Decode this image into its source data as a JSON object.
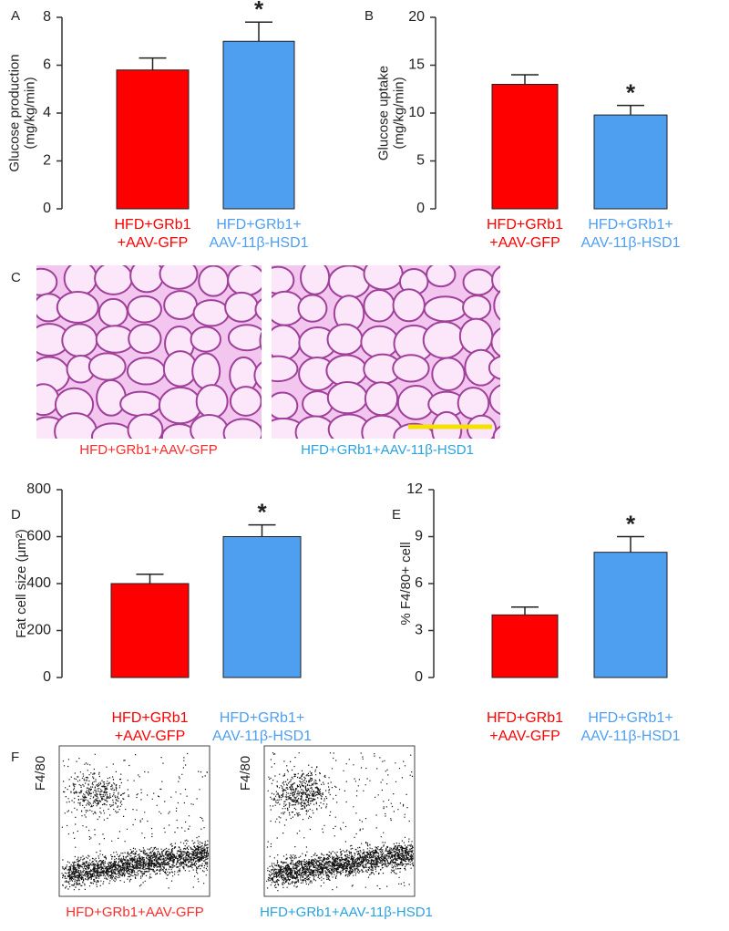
{
  "chart_data": [
    {
      "type": "bar",
      "panel": "A",
      "ylabel": [
        "Glucose production",
        "(mg/kg/min)"
      ],
      "categories": [
        [
          "HFD+GRb1",
          "+AAV-GFP"
        ],
        [
          "HFD+GRb1+",
          "AAV-11β-HSD1"
        ]
      ],
      "values": [
        5.8,
        7.0
      ],
      "errors": [
        0.5,
        0.8
      ],
      "annotations": [
        null,
        "*"
      ],
      "colors": [
        "#ff0000",
        "#4f9ff0"
      ],
      "ylim": [
        0,
        8
      ],
      "yticks": [
        0,
        2,
        4,
        6,
        8
      ]
    },
    {
      "type": "bar",
      "panel": "B",
      "ylabel": [
        "Glucose uptake",
        "(mg/kg/min)"
      ],
      "categories": [
        [
          "HFD+GRb1",
          "+AAV-GFP"
        ],
        [
          "HFD+GRb1+",
          "AAV-11β-HSD1"
        ]
      ],
      "values": [
        13,
        9.8
      ],
      "errors": [
        1,
        1
      ],
      "annotations": [
        null,
        "*"
      ],
      "colors": [
        "#ff0000",
        "#4f9ff0"
      ],
      "ylim": [
        0,
        20
      ],
      "yticks": [
        0,
        5,
        10,
        15,
        20
      ]
    },
    {
      "type": "bar",
      "panel": "D",
      "ylabel": [
        "Fat cell size (μm²)"
      ],
      "categories": [
        [
          "HFD+GRb1",
          "+AAV-GFP"
        ],
        [
          "HFD+GRb1+",
          "AAV-11β-HSD1"
        ]
      ],
      "values": [
        400,
        600
      ],
      "errors": [
        40,
        50
      ],
      "annotations": [
        null,
        "*"
      ],
      "colors": [
        "#ff0000",
        "#4f9ff0"
      ],
      "ylim": [
        0,
        800
      ],
      "yticks": [
        0,
        200,
        400,
        600,
        800
      ]
    },
    {
      "type": "bar",
      "panel": "E",
      "ylabel": [
        "% F4/80+ cell"
      ],
      "categories": [
        [
          "HFD+GRb1",
          "+AAV-GFP"
        ],
        [
          "HFD+GRb1+",
          "AAV-11β-HSD1"
        ]
      ],
      "values": [
        4,
        8
      ],
      "errors": [
        0.5,
        1
      ],
      "annotations": [
        null,
        "*"
      ],
      "colors": [
        "#ff0000",
        "#4f9ff0"
      ],
      "ylim": [
        0,
        12
      ],
      "yticks": [
        0,
        3,
        6,
        9,
        12
      ]
    }
  ],
  "panel_c": {
    "label": "C",
    "captions": [
      "HFD+GRb1+AAV-GFP",
      "HFD+GRb1+AAV-11β-HSD1"
    ]
  },
  "panel_f": {
    "label": "F",
    "axis_label": "F4/80",
    "captions": [
      "HFD+GRb1+AAV-GFP",
      "HFD+GRb1+AAV-11β-HSD1"
    ]
  }
}
